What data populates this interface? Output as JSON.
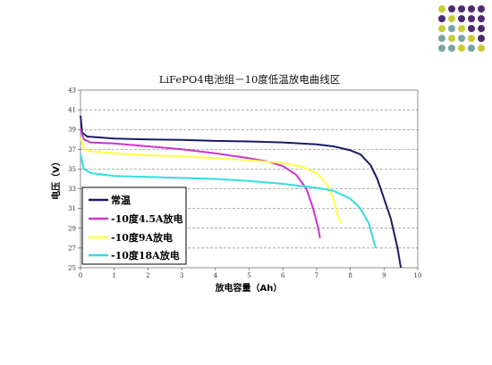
{
  "decor": {
    "dot_colors": {
      "purple": "#4d2a6e",
      "yellow": "#c8cc34",
      "teal": "#7aa3a4"
    },
    "dot_grid": [
      [
        "yellow",
        "purple",
        "purple",
        "purple",
        "purple"
      ],
      [
        "purple",
        "yellow",
        "purple",
        "purple",
        "purple"
      ],
      [
        "yellow",
        "teal",
        "yellow",
        "purple",
        "purple"
      ],
      [
        "teal",
        "yellow",
        "teal",
        "yellow",
        "purple"
      ],
      [
        "teal",
        "teal",
        "yellow",
        "teal",
        "yellow"
      ]
    ]
  },
  "chart_data": {
    "type": "line",
    "title": "LiFePO4电池组－10度低温放电曲线区",
    "xlabel": "放电容量（Ah）",
    "ylabel": "电压（V）",
    "xlim": [
      0,
      10
    ],
    "ylim": [
      25,
      43
    ],
    "xticks": [
      0,
      1,
      2,
      3,
      4,
      5,
      6,
      7,
      8,
      9,
      10
    ],
    "yticks": [
      25,
      27,
      29,
      31,
      33,
      35,
      37,
      39,
      41,
      43
    ],
    "grid": "horizontal dashed at each y tick",
    "legend_position": "bottom-left",
    "series": [
      {
        "name": "常温",
        "color": "#1a1a66",
        "points": [
          [
            0,
            40.4
          ],
          [
            0.05,
            38.7
          ],
          [
            0.2,
            38.3
          ],
          [
            1,
            38.1
          ],
          [
            2,
            38.0
          ],
          [
            3,
            37.95
          ],
          [
            4,
            37.85
          ],
          [
            5,
            37.8
          ],
          [
            6,
            37.7
          ],
          [
            7,
            37.5
          ],
          [
            7.5,
            37.3
          ],
          [
            8,
            36.9
          ],
          [
            8.3,
            36.5
          ],
          [
            8.6,
            35.4
          ],
          [
            8.8,
            34.0
          ],
          [
            9.0,
            32.0
          ],
          [
            9.2,
            30.0
          ],
          [
            9.4,
            27.0
          ],
          [
            9.5,
            25.0
          ]
        ]
      },
      {
        "name": "-10度4.5A放电",
        "color": "#cc33cc",
        "points": [
          [
            0,
            39.1
          ],
          [
            0.1,
            38.0
          ],
          [
            0.3,
            37.7
          ],
          [
            1,
            37.6
          ],
          [
            2,
            37.3
          ],
          [
            3,
            37.0
          ],
          [
            4,
            36.6
          ],
          [
            5,
            36.1
          ],
          [
            5.5,
            35.8
          ],
          [
            6,
            35.3
          ],
          [
            6.4,
            34.4
          ],
          [
            6.7,
            33.0
          ],
          [
            6.9,
            31.0
          ],
          [
            7.05,
            29.0
          ],
          [
            7.1,
            28.0
          ]
        ]
      },
      {
        "name": "-10度9A放电",
        "color": "#ffff44",
        "points": [
          [
            0,
            38.2
          ],
          [
            0.1,
            37.0
          ],
          [
            0.3,
            36.8
          ],
          [
            1,
            36.6
          ],
          [
            2,
            36.4
          ],
          [
            3,
            36.3
          ],
          [
            4,
            36.1
          ],
          [
            5,
            35.9
          ],
          [
            6,
            35.6
          ],
          [
            6.5,
            35.3
          ],
          [
            7.0,
            34.6
          ],
          [
            7.3,
            33.5
          ],
          [
            7.5,
            32.0
          ],
          [
            7.65,
            30.0
          ],
          [
            7.75,
            29.5
          ]
        ]
      },
      {
        "name": "-10度18A放电",
        "color": "#33dddd",
        "points": [
          [
            0,
            36.5
          ],
          [
            0.1,
            35.0
          ],
          [
            0.3,
            34.6
          ],
          [
            1,
            34.3
          ],
          [
            2,
            34.2
          ],
          [
            3,
            34.1
          ],
          [
            4,
            34.0
          ],
          [
            5,
            33.8
          ],
          [
            6,
            33.5
          ],
          [
            6.5,
            33.3
          ],
          [
            7,
            33.1
          ],
          [
            7.5,
            32.8
          ],
          [
            8.0,
            32.0
          ],
          [
            8.3,
            31.0
          ],
          [
            8.55,
            29.5
          ],
          [
            8.75,
            27.0
          ]
        ]
      }
    ]
  }
}
